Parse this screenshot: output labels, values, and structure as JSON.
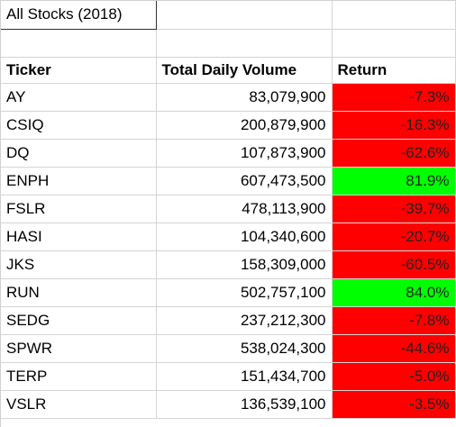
{
  "sheet": {
    "title": "All Stocks (2018)",
    "headers": {
      "ticker": "Ticker",
      "volume": "Total Daily Volume",
      "return": "Return"
    },
    "colors": {
      "positive": "#00ff00",
      "negative": "#ff0000"
    },
    "rows": [
      {
        "ticker": "AY",
        "volume": "83,079,900",
        "return": "-7.3%",
        "status": "negative"
      },
      {
        "ticker": "CSIQ",
        "volume": "200,879,900",
        "return": "-16.3%",
        "status": "negative"
      },
      {
        "ticker": "DQ",
        "volume": "107,873,900",
        "return": "-62.6%",
        "status": "negative"
      },
      {
        "ticker": "ENPH",
        "volume": "607,473,500",
        "return": "81.9%",
        "status": "positive"
      },
      {
        "ticker": "FSLR",
        "volume": "478,113,900",
        "return": "-39.7%",
        "status": "negative"
      },
      {
        "ticker": "HASI",
        "volume": "104,340,600",
        "return": "-20.7%",
        "status": "negative"
      },
      {
        "ticker": "JKS",
        "volume": "158,309,000",
        "return": "-60.5%",
        "status": "negative"
      },
      {
        "ticker": "RUN",
        "volume": "502,757,100",
        "return": "84.0%",
        "status": "positive"
      },
      {
        "ticker": "SEDG",
        "volume": "237,212,300",
        "return": "-7.8%",
        "status": "negative"
      },
      {
        "ticker": "SPWR",
        "volume": "538,024,300",
        "return": "-44.6%",
        "status": "negative"
      },
      {
        "ticker": "TERP",
        "volume": "151,434,700",
        "return": "-5.0%",
        "status": "negative"
      },
      {
        "ticker": "VSLR",
        "volume": "136,539,100",
        "return": "-3.5%",
        "status": "negative"
      }
    ]
  }
}
